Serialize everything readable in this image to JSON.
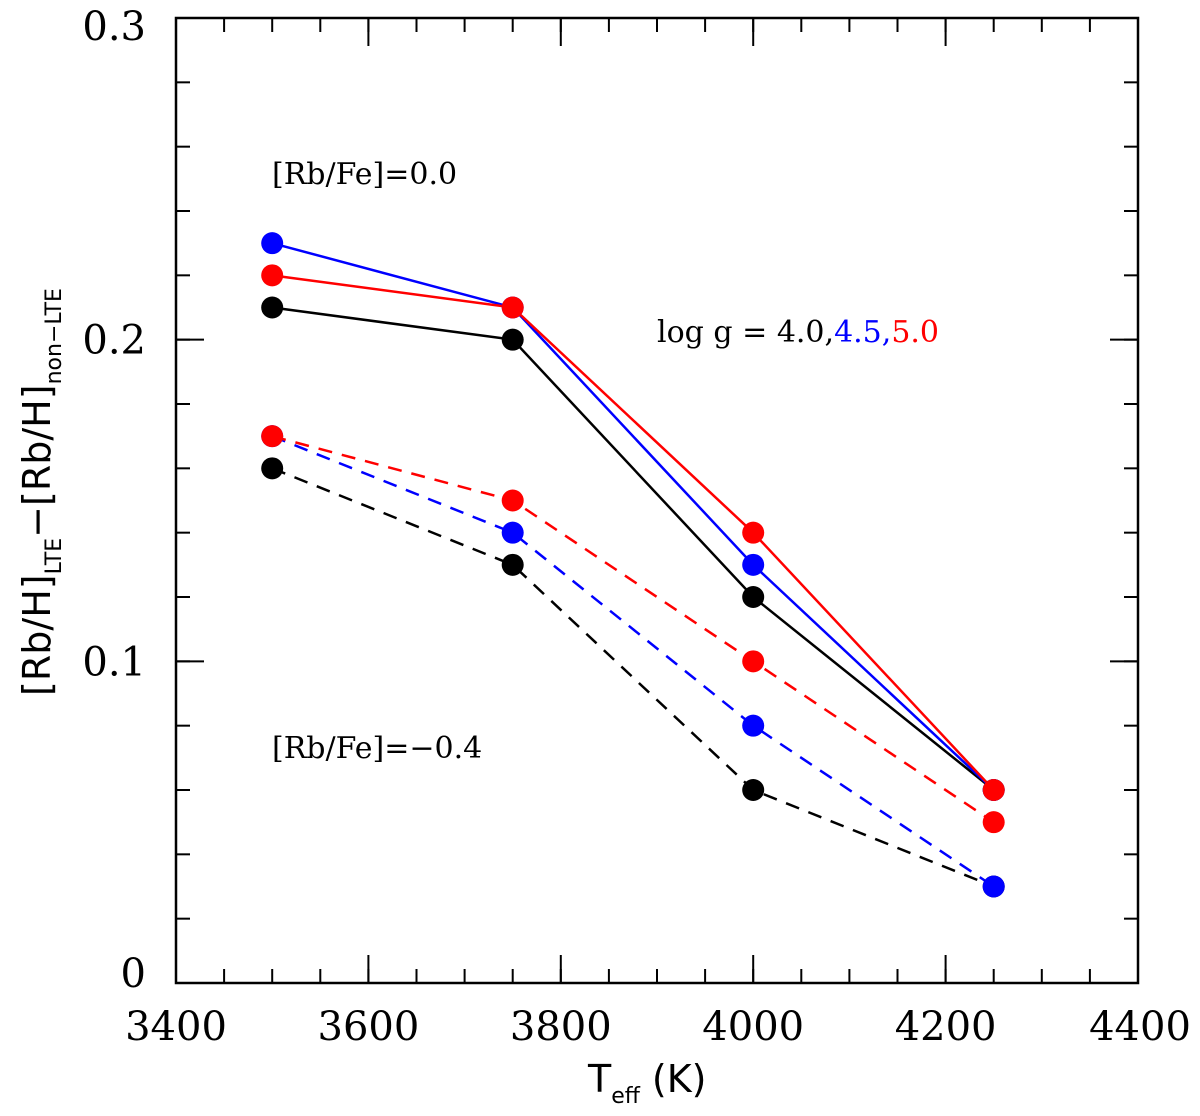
{
  "chart_data": {
    "type": "line",
    "xlabel_main": "T",
    "xlabel_sub": "eff",
    "xlabel_unit": "(K)",
    "ylabel_part1": "[Rb/H]",
    "ylabel_sub1": "LTE",
    "ylabel_minus": "−",
    "ylabel_part2": "[Rb/H]",
    "ylabel_sub2": "non−LTE",
    "xlim": [
      3400,
      4400
    ],
    "ylim": [
      0,
      0.3
    ],
    "x_ticks": [
      3400,
      3600,
      3800,
      4000,
      4200,
      4400
    ],
    "x_tick_labels": [
      "3400",
      "3600",
      "3800",
      "4000",
      "4200",
      "4400"
    ],
    "x_minor_step": 50,
    "y_ticks": [
      0,
      0.1,
      0.2,
      0.3
    ],
    "y_tick_labels": [
      "0",
      "0.1",
      "0.2",
      "0.3"
    ],
    "y_minor_step": 0.02,
    "x": [
      3500,
      3750,
      4000,
      4250
    ],
    "series": [
      {
        "name": "[Rb/Fe]=0.0, log g = 4.0",
        "color": "#000000",
        "dash": false,
        "values": [
          0.21,
          0.2,
          0.12,
          0.06
        ]
      },
      {
        "name": "[Rb/Fe]=0.0, log g = 4.5",
        "color": "#0000ff",
        "dash": false,
        "values": [
          0.23,
          0.21,
          0.13,
          0.06
        ]
      },
      {
        "name": "[Rb/Fe]=0.0, log g = 5.0",
        "color": "#ff0000",
        "dash": false,
        "values": [
          0.22,
          0.21,
          0.14,
          0.06
        ]
      },
      {
        "name": "[Rb/Fe]=-0.4, log g = 4.0",
        "color": "#000000",
        "dash": true,
        "values": [
          0.16,
          0.13,
          0.06,
          0.03
        ]
      },
      {
        "name": "[Rb/Fe]=-0.4, log g = 4.5",
        "color": "#0000ff",
        "dash": true,
        "values": [
          0.17,
          0.14,
          0.08,
          0.03
        ]
      },
      {
        "name": "[Rb/Fe]=-0.4, log g = 5.0",
        "color": "#ff0000",
        "dash": true,
        "values": [
          0.17,
          0.15,
          0.1,
          0.05
        ]
      }
    ],
    "annotations": {
      "rbfe_solar": "[Rb/Fe]=0.0",
      "rbfe_low": "[Rb/Fe]=−0.4",
      "logg_prefix": "log g = ",
      "logg_1": "4.0,",
      "logg_2": "4.5,",
      "logg_3": "5.0",
      "color_1": "#000000",
      "color_2": "#0000ff",
      "color_3": "#ff0000"
    }
  }
}
